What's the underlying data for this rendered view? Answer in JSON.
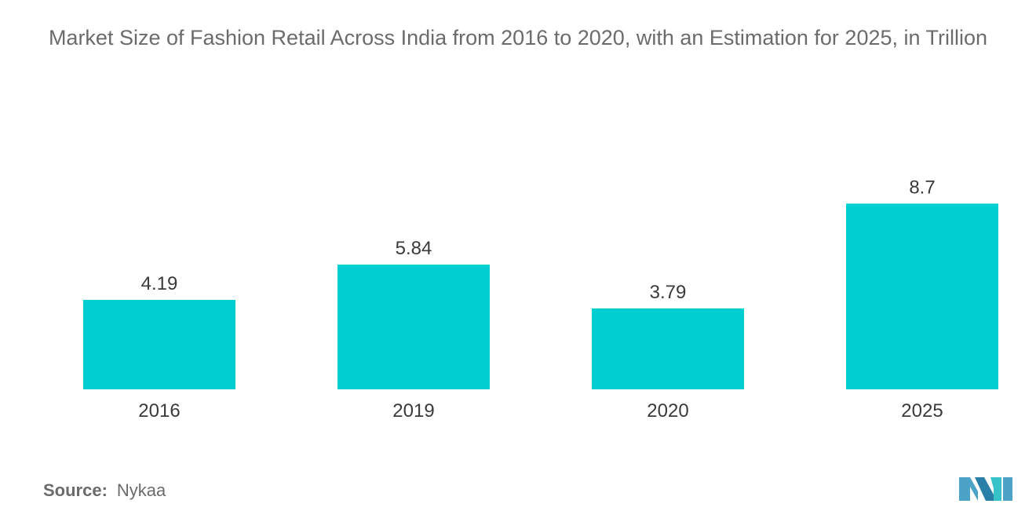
{
  "chart_data": {
    "type": "bar",
    "title": "Market Size of Fashion Retail Across India from 2016 to 2020, with an Estimation for 2025, in Trillion",
    "categories": [
      "2016",
      "2019",
      "2020",
      "2025"
    ],
    "values": [
      4.19,
      5.84,
      3.79,
      8.7
    ],
    "value_labels": [
      "4.19",
      "5.84",
      "3.79",
      "8.7"
    ],
    "xlabel": "",
    "ylabel": "",
    "grid": false,
    "legend": "none",
    "bar_color": "#00CED1"
  },
  "source": {
    "label": "Source:",
    "text": "Nykaa"
  },
  "logo": {
    "icon": "mordor-intelligence-logo",
    "colors": [
      "#4BA3C7",
      "#2A7FA8",
      "#36C2C9"
    ]
  }
}
